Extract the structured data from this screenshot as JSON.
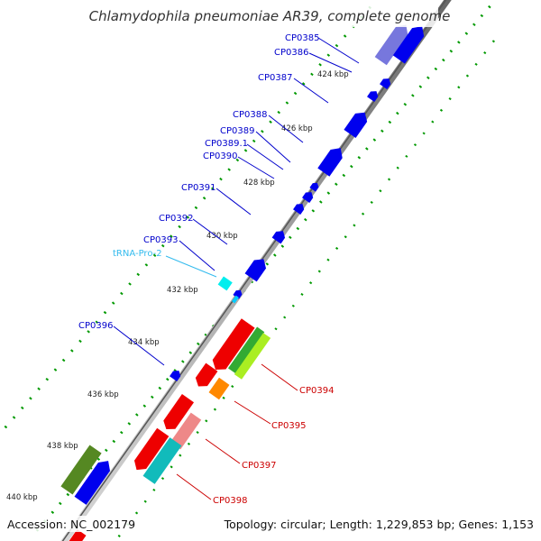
{
  "title": "Chlamydophila pneumoniae AR39, complete genome",
  "footer": {
    "accession": "Accession: NC_002179",
    "summary": "Topology: circular; Length: 1,229,853 bp; Genes: 1,153"
  },
  "ticks": [
    "424 kbp",
    "426 kbp",
    "428 kbp",
    "430 kbp",
    "432 kbp",
    "434 kbp",
    "436 kbp",
    "438 kbp",
    "440 kbp"
  ],
  "labels": [
    "CP0385",
    "CP0386",
    "CP0387",
    "CP0388",
    "CP0389",
    "CP0389.1",
    "CP0390",
    "CP0391",
    "CP0392",
    "CP0393",
    "tRNA-Pro-2",
    "CP0396",
    "CP0394",
    "CP0395",
    "CP0397",
    "CP0398"
  ],
  "colors": {
    "forward_gene": "#0000ee",
    "trna": "#00ccff",
    "reverse_gene": "#ee0000",
    "reverse_label": "#cc0000",
    "forward_label": "#0000cc",
    "trna_label": "#33bbee",
    "gc_dots": "#009900",
    "backbone": "#999999"
  }
}
